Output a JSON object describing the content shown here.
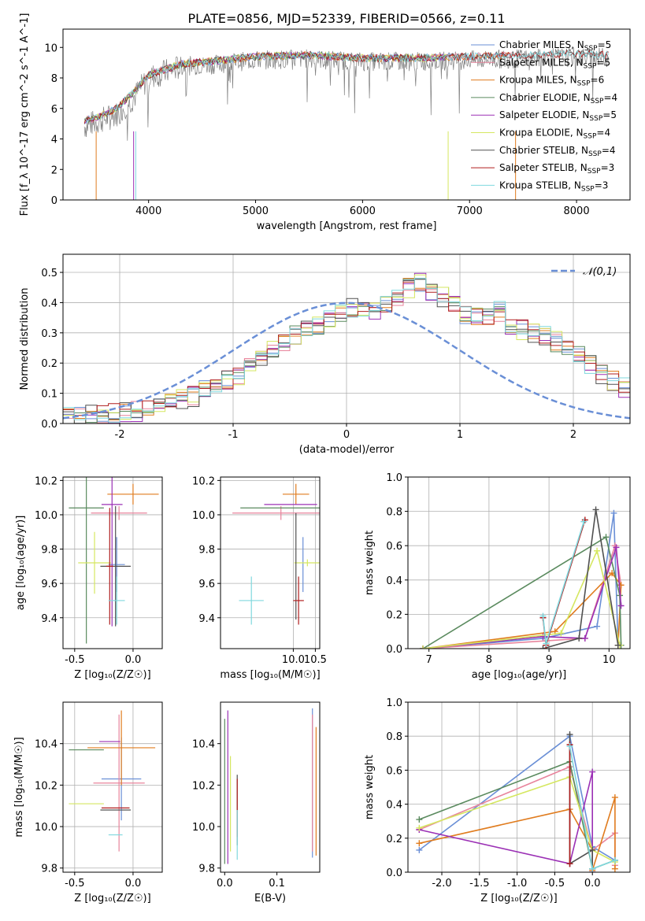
{
  "title": "PLATE=0856, MJD=52339, FIBERID=0566, z=0.11",
  "colors": {
    "Chabrier MILES": "#6a8fd6",
    "Salpeter MILES": "#e8849c",
    "Kroupa MILES": "#e07c1f",
    "Chabrier ELODIE": "#5a8a5e",
    "Salpeter ELODIE": "#9b30b5",
    "Kroupa ELODIE": "#d5e760",
    "Chabrier STELIB": "#505050",
    "Salpeter STELIB": "#b01e1e",
    "Kroupa STELIB": "#7fd8de"
  },
  "chart_data": [
    {
      "id": "spectrum",
      "type": "line",
      "title": "PLATE=0856, MJD=52339, FIBERID=0566, z=0.11",
      "xlabel": "wavelength [Angstrom, rest frame]",
      "ylabel": "Flux [f_λ 10^-17 erg cm^-2 s^-1 A^-1]",
      "xlim": [
        3200,
        8500
      ],
      "ylim": [
        0,
        11.2
      ],
      "xticks": [
        4000,
        5000,
        6000,
        7000,
        8000
      ],
      "yticks": [
        0,
        2,
        4,
        6,
        8,
        10
      ],
      "grid": false,
      "legend_position": "right",
      "data_color": "#808080",
      "data_envelope": [
        [
          3400,
          5.0
        ],
        [
          3550,
          5.4
        ],
        [
          3700,
          5.8
        ],
        [
          3850,
          6.8
        ],
        [
          4000,
          8.2
        ],
        [
          4300,
          8.9
        ],
        [
          4600,
          9.0
        ],
        [
          5000,
          9.3
        ],
        [
          5500,
          9.4
        ],
        [
          6000,
          9.2
        ],
        [
          6500,
          9.2
        ],
        [
          7000,
          9.3
        ],
        [
          7500,
          9.4
        ],
        [
          8000,
          9.5
        ],
        [
          8300,
          9.5
        ]
      ],
      "models_envelope": [
        [
          3400,
          5.2
        ],
        [
          3550,
          5.5
        ],
        [
          3700,
          6.0
        ],
        [
          3850,
          7.0
        ],
        [
          4000,
          8.2
        ],
        [
          4300,
          8.9
        ],
        [
          4600,
          9.1
        ],
        [
          5000,
          9.4
        ],
        [
          5500,
          9.5
        ],
        [
          6000,
          9.3
        ],
        [
          6500,
          9.3
        ],
        [
          7000,
          9.4
        ],
        [
          7500,
          9.5
        ],
        [
          8000,
          9.6
        ],
        [
          8300,
          9.5
        ]
      ],
      "series": [
        {
          "name": "Chabrier MILES",
          "n_ssp": "5",
          "end": 7400
        },
        {
          "name": "Salpeter MILES",
          "n_ssp": "5",
          "end": 7400
        },
        {
          "name": "Kroupa MILES",
          "n_ssp": "6",
          "end": 7400
        },
        {
          "name": "Chabrier ELODIE",
          "n_ssp": "4",
          "end": 6800
        },
        {
          "name": "Salpeter ELODIE",
          "n_ssp": "5",
          "end": 6800
        },
        {
          "name": "Kroupa ELODIE",
          "n_ssp": "4",
          "end": 6800
        },
        {
          "name": "Chabrier STELIB",
          "n_ssp": "4",
          "end": 8300
        },
        {
          "name": "Salpeter STELIB",
          "n_ssp": "3",
          "end": 8300
        },
        {
          "name": "Kroupa STELIB",
          "n_ssp": "3",
          "end": 8300
        }
      ]
    },
    {
      "id": "residuals",
      "type": "histogram",
      "xlabel": "(data-model)/error",
      "ylabel": "Normed distribution",
      "xlim": [
        -2.5,
        2.5
      ],
      "ylim": [
        0,
        0.56
      ],
      "xticks": [
        -2,
        -1,
        0,
        1,
        2
      ],
      "yticks": [
        0.0,
        0.1,
        0.2,
        0.3,
        0.4,
        0.5
      ],
      "grid": true,
      "legend_position": "top-right",
      "reference_curve": {
        "label": "𝒩(0,1)",
        "mean": 0,
        "sigma": 1,
        "color": "#6a8fd6"
      },
      "bin_width": 0.1,
      "bins_from": -2.5,
      "base_profile": [
        0.02,
        0.025,
        0.03,
        0.035,
        0.035,
        0.04,
        0.04,
        0.05,
        0.06,
        0.07,
        0.08,
        0.09,
        0.11,
        0.12,
        0.14,
        0.16,
        0.19,
        0.22,
        0.25,
        0.27,
        0.29,
        0.31,
        0.33,
        0.35,
        0.37,
        0.38,
        0.39,
        0.38,
        0.39,
        0.42,
        0.45,
        0.47,
        0.44,
        0.42,
        0.39,
        0.36,
        0.35,
        0.36,
        0.37,
        0.33,
        0.31,
        0.3,
        0.29,
        0.27,
        0.25,
        0.22,
        0.19,
        0.16,
        0.14,
        0.12,
        0.11,
        0.09,
        0.08,
        0.07,
        0.06,
        0.06,
        0.05,
        0.04,
        0.04,
        0.03,
        0.025,
        0.02,
        0.02,
        0.02,
        0.02,
        0.02,
        0.02,
        0.02,
        0.02,
        0.02
      ]
    },
    {
      "id": "age_vs_Z",
      "type": "errorbar",
      "xlabel": "Z [log₁₀(Z/Z☉)]",
      "ylabel": "age  [log₁₀(age/yr)]",
      "xlim": [
        -0.6,
        0.25
      ],
      "ylim": [
        9.22,
        10.22
      ],
      "xticks": [
        -0.5,
        0.0
      ],
      "yticks": [
        9.4,
        9.6,
        9.8,
        10.0,
        10.2
      ],
      "grid": true,
      "points": [
        {
          "series": "Chabrier MILES",
          "x": -0.14,
          "xerr": 0.07,
          "y": 9.71,
          "yerr": 0.16
        },
        {
          "series": "Salpeter MILES",
          "x": -0.12,
          "xerr": 0.24,
          "y": 10.01,
          "yerr": 0.04
        },
        {
          "series": "Kroupa MILES",
          "x": 0.0,
          "xerr": 0.22,
          "y": 10.12,
          "yerr": 0.06
        },
        {
          "series": "Chabrier ELODIE",
          "x": -0.4,
          "xerr": 0.15,
          "y": 10.04,
          "yerr": 0.79
        },
        {
          "series": "Salpeter ELODIE",
          "x": -0.18,
          "xerr": 0.09,
          "y": 10.06,
          "yerr": 0.71
        },
        {
          "series": "Kroupa ELODIE",
          "x": -0.33,
          "xerr": 0.14,
          "y": 9.72,
          "yerr": 0.18
        },
        {
          "series": "Chabrier STELIB",
          "x": -0.15,
          "xerr": 0.13,
          "y": 9.7,
          "yerr": 0.35
        },
        {
          "series": "Salpeter STELIB",
          "x": -0.2,
          "xerr": 0.03,
          "y": 9.7,
          "yerr": 0.34
        },
        {
          "series": "Kroupa STELIB",
          "x": -0.14,
          "xerr": 0.07,
          "y": 9.5,
          "yerr": 0.14
        }
      ]
    },
    {
      "id": "age_vs_mass",
      "type": "errorbar",
      "xlabel": "mass [log₁₀(M/M☉)]",
      "xlim": [
        8.35,
        10.6
      ],
      "ylim": [
        9.22,
        10.22
      ],
      "xticks": [
        10.0,
        10.5
      ],
      "yticks": [
        9.4,
        9.6,
        9.8,
        10.0,
        10.2
      ],
      "grid": true,
      "points": [
        {
          "series": "Chabrier MILES",
          "x": 10.22,
          "y": 9.71,
          "yerr": 0.16,
          "xerr": 0.0
        },
        {
          "series": "Salpeter MILES",
          "x": 9.72,
          "y": 10.01,
          "yerr": 0.04,
          "xerr": 1.1
        },
        {
          "series": "Kroupa MILES",
          "x": 10.06,
          "y": 10.12,
          "yerr": 0.06,
          "xerr": 0.3
        },
        {
          "series": "Chabrier ELODIE",
          "x": 9.75,
          "y": 10.04,
          "yerr": 0.0,
          "xerr": 0.95
        },
        {
          "series": "Salpeter ELODIE",
          "x": 9.94,
          "y": 10.06,
          "yerr": 0.0,
          "xerr": 0.6
        },
        {
          "series": "Kroupa ELODIE",
          "x": 10.32,
          "y": 9.72,
          "yerr": 0.02,
          "xerr": 0.3
        },
        {
          "series": "Chabrier STELIB",
          "x": 10.06,
          "y": 9.7,
          "yerr": 0.31,
          "xerr": 0.0
        },
        {
          "series": "Salpeter STELIB",
          "x": 10.12,
          "y": 9.5,
          "yerr": 0.14,
          "xerr": 0.12
        },
        {
          "series": "Kroupa STELIB",
          "x": 9.05,
          "y": 9.5,
          "yerr": 0.14,
          "xerr": 0.28
        }
      ]
    },
    {
      "id": "weight_vs_age",
      "type": "line",
      "xlabel": "age  [log₁₀(age/yr)]",
      "ylabel": "mass weight",
      "xlim": [
        6.65,
        10.35
      ],
      "ylim": [
        0,
        1.0
      ],
      "xticks": [
        7,
        8,
        9,
        10
      ],
      "yticks": [
        0.0,
        0.2,
        0.4,
        0.6,
        0.8,
        1.0
      ],
      "grid": true,
      "series": [
        {
          "name": "Chabrier MILES",
          "points": [
            [
              6.9,
              0.0
            ],
            [
              8.9,
              0.06
            ],
            [
              9.8,
              0.13
            ],
            [
              10.08,
              0.79
            ],
            [
              10.15,
              0.02
            ]
          ]
        },
        {
          "name": "Salpeter MILES",
          "points": [
            [
              6.9,
              0.0
            ],
            [
              9.6,
              0.06
            ],
            [
              10.1,
              0.6
            ],
            [
              10.2,
              0.37
            ]
          ]
        },
        {
          "name": "Kroupa MILES",
          "points": [
            [
              6.9,
              0.0
            ],
            [
              9.1,
              0.1
            ],
            [
              10.05,
              0.44
            ],
            [
              10.2,
              0.37
            ],
            [
              10.15,
              0.02
            ]
          ]
        },
        {
          "name": "Chabrier ELODIE",
          "points": [
            [
              6.9,
              0.0
            ],
            [
              9.95,
              0.65
            ],
            [
              10.18,
              0.31
            ],
            [
              10.2,
              0.02
            ]
          ]
        },
        {
          "name": "Salpeter ELODIE",
          "points": [
            [
              6.9,
              0.0
            ],
            [
              8.9,
              0.07
            ],
            [
              9.6,
              0.06
            ],
            [
              10.12,
              0.59
            ],
            [
              10.2,
              0.25
            ]
          ]
        },
        {
          "name": "Kroupa ELODIE",
          "points": [
            [
              6.9,
              0.0
            ],
            [
              9.2,
              0.09
            ],
            [
              9.8,
              0.57
            ],
            [
              10.18,
              0.02
            ]
          ]
        },
        {
          "name": "Chabrier STELIB",
          "points": [
            [
              8.9,
              0.0
            ],
            [
              9.5,
              0.06
            ],
            [
              9.78,
              0.81
            ],
            [
              10.15,
              0.02
            ]
          ]
        },
        {
          "name": "Salpeter STELIB",
          "points": [
            [
              8.9,
              0.18
            ],
            [
              8.95,
              0.02
            ],
            [
              9.6,
              0.75
            ]
          ]
        },
        {
          "name": "Kroupa STELIB",
          "points": [
            [
              8.9,
              0.19
            ],
            [
              8.95,
              0.03
            ],
            [
              9.58,
              0.74
            ]
          ]
        }
      ]
    },
    {
      "id": "mass_vs_Z",
      "type": "errorbar",
      "xlabel": "Z [log₁₀(Z/Z☉)]",
      "ylabel": "mass [log₁₀(M/M☉)]",
      "xlim": [
        -0.6,
        0.25
      ],
      "ylim": [
        9.78,
        10.6
      ],
      "xticks": [
        -0.5,
        0.0
      ],
      "yticks": [
        9.8,
        10.0,
        10.2,
        10.4
      ],
      "grid": true,
      "points": [
        {
          "series": "Chabrier MILES",
          "x": -0.1,
          "xerr": 0.17,
          "y": 10.23,
          "yerr": 0.2
        },
        {
          "series": "Salpeter MILES",
          "x": -0.12,
          "xerr": 0.22,
          "y": 10.21,
          "yerr": 0.33
        },
        {
          "series": "Kroupa MILES",
          "x": -0.1,
          "xerr": 0.29,
          "y": 10.38,
          "yerr": 0.18
        },
        {
          "series": "Chabrier ELODIE",
          "x": -0.4,
          "xerr": 0.15,
          "y": 10.37,
          "yerr": 0.0
        },
        {
          "series": "Salpeter ELODIE",
          "x": -0.2,
          "xerr": 0.09,
          "y": 10.41,
          "yerr": 0.0
        },
        {
          "series": "Kroupa ELODIE",
          "x": -0.4,
          "xerr": 0.15,
          "y": 10.11,
          "yerr": 0.0
        },
        {
          "series": "Chabrier STELIB",
          "x": -0.15,
          "xerr": 0.13,
          "y": 10.08,
          "yerr": 0.0
        },
        {
          "series": "Salpeter STELIB",
          "x": -0.15,
          "xerr": 0.12,
          "y": 10.09,
          "yerr": 0.0
        },
        {
          "series": "Kroupa STELIB",
          "x": -0.15,
          "xerr": 0.06,
          "y": 9.96,
          "yerr": 0.0
        }
      ]
    },
    {
      "id": "mass_vs_EBV",
      "type": "errorbar",
      "xlabel": "E(B-V)",
      "xlim": [
        -0.008,
        0.182
      ],
      "ylim": [
        9.78,
        10.6
      ],
      "xticks": [
        0.0,
        0.1
      ],
      "yticks": [
        9.8,
        10.0,
        10.2,
        10.4
      ],
      "grid": false,
      "points": [
        {
          "series": "Chabrier MILES",
          "x": 0.168,
          "y": 10.21,
          "yerr": 0.36,
          "xerr": 0
        },
        {
          "series": "Salpeter MILES",
          "x": 0.168,
          "y": 10.21,
          "yerr": 0.33,
          "xerr": 0
        },
        {
          "series": "Kroupa MILES",
          "x": 0.175,
          "y": 10.17,
          "yerr": 0.31,
          "xerr": 0
        },
        {
          "series": "Chabrier ELODIE",
          "x": 0.0,
          "y": 10.17,
          "yerr": 0.35,
          "xerr": 0
        },
        {
          "series": "Salpeter ELODIE",
          "x": 0.006,
          "y": 10.19,
          "yerr": 0.37,
          "xerr": 0
        },
        {
          "series": "Kroupa ELODIE",
          "x": 0.011,
          "y": 10.11,
          "yerr": 0.23,
          "xerr": 0
        },
        {
          "series": "Chabrier STELIB",
          "x": 0.024,
          "y": 10.08,
          "yerr": 0.17,
          "xerr": 0
        },
        {
          "series": "Salpeter STELIB",
          "x": 0.024,
          "y": 10.09,
          "yerr": 0.14,
          "xerr": 0
        },
        {
          "series": "Kroupa STELIB",
          "x": 0.024,
          "y": 9.96,
          "yerr": 0.12,
          "xerr": 0
        }
      ]
    },
    {
      "id": "weight_vs_Z",
      "type": "line",
      "xlabel": "Z [log₁₀(Z/Z☉)]",
      "ylabel": "mass weight",
      "xlim": [
        -2.45,
        0.5
      ],
      "ylim": [
        0,
        1.0
      ],
      "xticks": [
        -2.0,
        -1.5,
        -1.0,
        -0.5,
        0.0
      ],
      "yticks": [
        0.0,
        0.2,
        0.4,
        0.6,
        0.8,
        1.0
      ],
      "grid": true,
      "series": [
        {
          "name": "Chabrier MILES",
          "points": [
            [
              -2.3,
              0.13
            ],
            [
              -0.3,
              0.8
            ],
            [
              0.0,
              0.15
            ],
            [
              0.3,
              0.07
            ]
          ]
        },
        {
          "name": "Salpeter MILES",
          "points": [
            [
              -2.3,
              0.25
            ],
            [
              -0.3,
              0.62
            ],
            [
              0.0,
              0.13
            ],
            [
              0.3,
              0.23
            ],
            [
              0.3,
              0.04
            ]
          ]
        },
        {
          "name": "Kroupa MILES",
          "points": [
            [
              -2.3,
              0.17
            ],
            [
              -0.3,
              0.37
            ],
            [
              0.0,
              0.13
            ],
            [
              0.0,
              0.01
            ],
            [
              0.3,
              0.44
            ],
            [
              0.3,
              0.02
            ]
          ]
        },
        {
          "name": "Chabrier ELODIE",
          "points": [
            [
              -2.3,
              0.31
            ],
            [
              -0.3,
              0.65
            ],
            [
              0.0,
              0.02
            ],
            [
              0.3,
              0.07
            ]
          ]
        },
        {
          "name": "Salpeter ELODIE",
          "points": [
            [
              -2.3,
              0.25
            ],
            [
              -0.3,
              0.05
            ],
            [
              0.0,
              0.59
            ],
            [
              0.0,
              0.0
            ]
          ]
        },
        {
          "name": "Kroupa ELODIE",
          "points": [
            [
              -2.3,
              0.26
            ],
            [
              -0.3,
              0.56
            ],
            [
              0.0,
              0.13
            ],
            [
              0.3,
              0.06
            ]
          ]
        },
        {
          "name": "Chabrier STELIB",
          "points": [
            [
              -0.3,
              0.81
            ],
            [
              -0.3,
              0.05
            ],
            [
              0.0,
              0.13
            ],
            [
              0.0,
              0.02
            ]
          ]
        },
        {
          "name": "Salpeter STELIB",
          "points": [
            [
              -0.3,
              0.75
            ],
            [
              -0.3,
              0.05
            ]
          ]
        },
        {
          "name": "Kroupa STELIB",
          "points": [
            [
              -0.3,
              0.74
            ],
            [
              0.0,
              0.02
            ],
            [
              0.3,
              0.07
            ]
          ]
        }
      ]
    }
  ]
}
